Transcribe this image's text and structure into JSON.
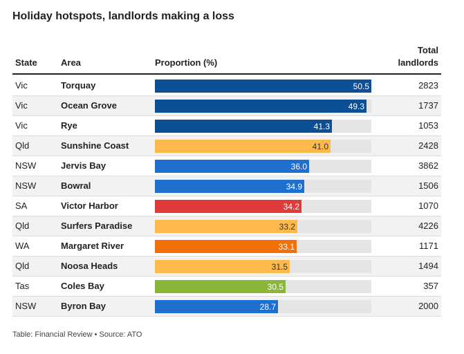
{
  "title": "Holiday hotspots, landlords making a loss",
  "headers": {
    "state": "State",
    "area": "Area",
    "proportion": "Proportion (%)",
    "total_line1": "Total",
    "total_line2": "landlords"
  },
  "footer": "Table: Financial Review • Source: ATO",
  "colors": {
    "Vic": "#0d4f95",
    "Qld": "#fdb94b",
    "NSW": "#1f6fcf",
    "SA": "#e03b3b",
    "WA": "#f26f0a",
    "Tas": "#8bb63c",
    "track": "#e5e5e5"
  },
  "chart_data": {
    "type": "table",
    "title": "Holiday hotspots, landlords making a loss",
    "columns": [
      "State",
      "Area",
      "Proportion (%)",
      "Total landlords"
    ],
    "scale_max": 50.5,
    "rows": [
      {
        "state": "Vic",
        "area": "Torquay",
        "proportion": "50.5",
        "total": "2823"
      },
      {
        "state": "Vic",
        "area": "Ocean Grove",
        "proportion": "49.3",
        "total": "1737"
      },
      {
        "state": "Vic",
        "area": "Rye",
        "proportion": "41.3",
        "total": "1053"
      },
      {
        "state": "Qld",
        "area": "Sunshine Coast",
        "proportion": "41.0",
        "total": "2428"
      },
      {
        "state": "NSW",
        "area": "Jervis Bay",
        "proportion": "36.0",
        "total": "3862"
      },
      {
        "state": "NSW",
        "area": "Bowral",
        "proportion": "34.9",
        "total": "1506"
      },
      {
        "state": "SA",
        "area": "Victor Harbor",
        "proportion": "34.2",
        "total": "1070"
      },
      {
        "state": "Qld",
        "area": "Surfers Paradise",
        "proportion": "33.2",
        "total": "4226"
      },
      {
        "state": "WA",
        "area": "Margaret River",
        "proportion": "33.1",
        "total": "1171"
      },
      {
        "state": "Qld",
        "area": "Noosa Heads",
        "proportion": "31.5",
        "total": "1494"
      },
      {
        "state": "Tas",
        "area": "Coles Bay",
        "proportion": "30.5",
        "total": "357"
      },
      {
        "state": "NSW",
        "area": "Byron Bay",
        "proportion": "28.7",
        "total": "2000"
      }
    ]
  }
}
